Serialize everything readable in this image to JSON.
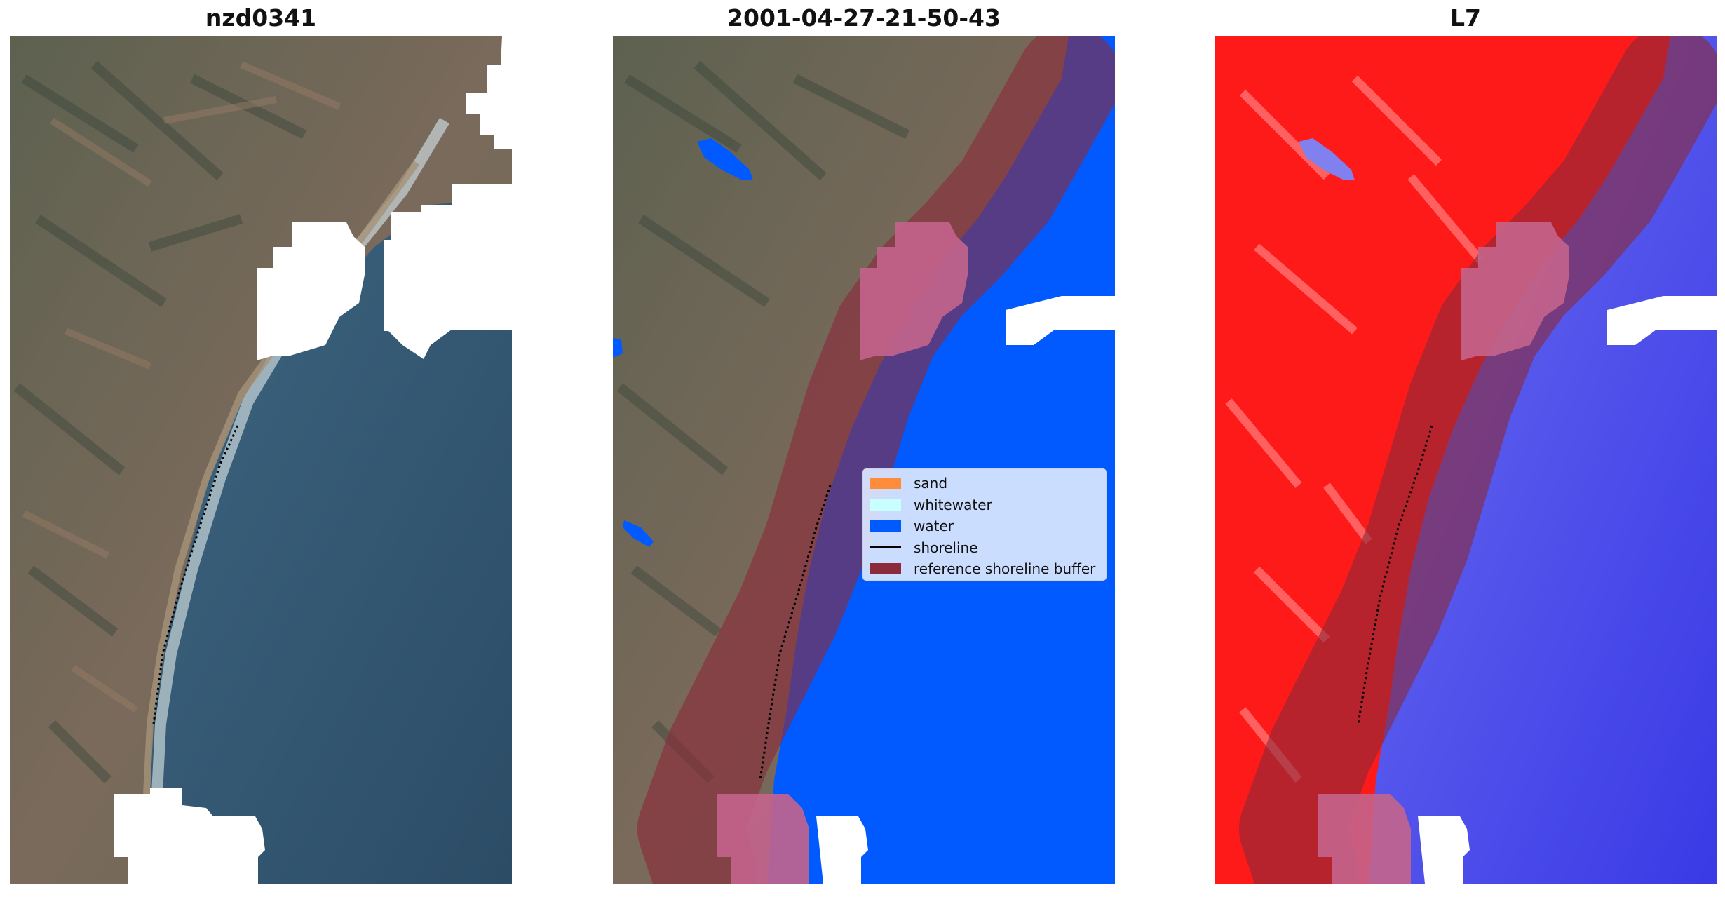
{
  "panels": [
    {
      "title": "nzd0341"
    },
    {
      "title": "2001-04-27-21-50-43"
    },
    {
      "title": "L7"
    }
  ],
  "legend": {
    "items": [
      {
        "label": "sand",
        "color": "#ff8c3a",
        "kind": "patch"
      },
      {
        "label": "whitewater",
        "color": "#c8ffff",
        "kind": "patch"
      },
      {
        "label": "water",
        "color": "#005aff",
        "kind": "patch"
      },
      {
        "label": "shoreline",
        "color": "#000000",
        "kind": "line"
      },
      {
        "label": "reference shoreline buffer",
        "color": "#8b2a3a",
        "kind": "patch"
      }
    ]
  },
  "colors": {
    "land": "#6f6b5a",
    "ocean": "#2f5670",
    "classified_water": "#005aff",
    "buffer": "#8b2a3a",
    "cloud_mask": "#ffffff",
    "index_land": "#ff1a1a",
    "index_water": "#5a5af0"
  }
}
